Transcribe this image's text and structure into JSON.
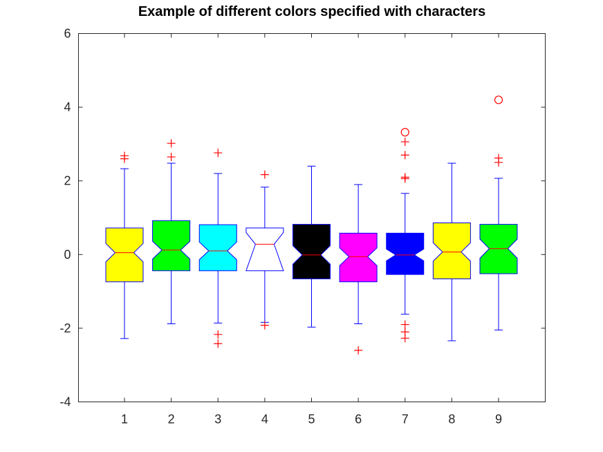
{
  "chart_data": {
    "type": "boxplot",
    "title": "Example of different colors specified with characters",
    "xlabel": "",
    "ylabel": "",
    "ylim": [
      -4,
      6
    ],
    "yticks": [
      -4,
      -2,
      0,
      2,
      4,
      6
    ],
    "categories": [
      "1",
      "2",
      "3",
      "4",
      "5",
      "6",
      "7",
      "8",
      "9"
    ],
    "notched": true,
    "grid": false,
    "box_edge_color": "#0000ff",
    "median_color": "#ff0000",
    "outlier_color": "#ff0000",
    "boxes": [
      {
        "fill": "#ffff00",
        "q1": -0.74,
        "median": 0.05,
        "q3": 0.72,
        "notch_low": -0.2,
        "notch_high": 0.3,
        "whisker_low": -2.28,
        "whisker_high": 2.33,
        "outliers": [
          2.6,
          2.68
        ],
        "far_outliers": []
      },
      {
        "fill": "#00ff00",
        "q1": -0.44,
        "median": 0.12,
        "q3": 0.92,
        "notch_low": -0.12,
        "notch_high": 0.36,
        "whisker_low": -1.88,
        "whisker_high": 2.48,
        "outliers": [
          2.65,
          3.02
        ],
        "far_outliers": []
      },
      {
        "fill": "#00ffff",
        "q1": -0.44,
        "median": 0.1,
        "q3": 0.81,
        "notch_low": -0.14,
        "notch_high": 0.34,
        "whisker_low": -1.86,
        "whisker_high": 2.2,
        "outliers": [
          2.76,
          -2.17,
          -2.42
        ],
        "far_outliers": []
      },
      {
        "fill": "#ffffff",
        "q1": -0.44,
        "median": 0.28,
        "q3": 0.72,
        "notch_low": -0.44,
        "notch_high": 0.6,
        "whisker_low": -1.84,
        "whisker_high": 1.83,
        "outliers": [
          2.17,
          -1.92
        ],
        "far_outliers": []
      },
      {
        "fill": "#000000",
        "q1": -0.66,
        "median": -0.01,
        "q3": 0.82,
        "notch_low": -0.26,
        "notch_high": 0.24,
        "whisker_low": -1.97,
        "whisker_high": 2.4,
        "outliers": [],
        "far_outliers": []
      },
      {
        "fill": "#ff00ff",
        "q1": -0.74,
        "median": -0.06,
        "q3": 0.58,
        "notch_low": -0.3,
        "notch_high": 0.18,
        "whisker_low": -1.88,
        "whisker_high": 1.9,
        "outliers": [
          -2.6
        ],
        "far_outliers": []
      },
      {
        "fill": "#0000ff",
        "q1": -0.54,
        "median": -0.01,
        "q3": 0.58,
        "notch_low": -0.17,
        "notch_high": 0.15,
        "whisker_low": -1.62,
        "whisker_high": 1.66,
        "outliers": [
          2.06,
          2.1,
          2.7,
          3.06,
          -1.9,
          -2.1,
          -2.27
        ],
        "far_outliers": [
          3.32
        ]
      },
      {
        "fill": "#ffff00",
        "q1": -0.66,
        "median": 0.07,
        "q3": 0.86,
        "notch_low": -0.18,
        "notch_high": 0.32,
        "whisker_low": -2.34,
        "whisker_high": 2.48,
        "outliers": [],
        "far_outliers": []
      },
      {
        "fill": "#00ff00",
        "q1": -0.52,
        "median": 0.16,
        "q3": 0.82,
        "notch_low": -0.1,
        "notch_high": 0.42,
        "whisker_low": -2.05,
        "whisker_high": 2.07,
        "outliers": [
          2.5,
          2.62
        ],
        "far_outliers": [
          4.2
        ]
      }
    ]
  }
}
